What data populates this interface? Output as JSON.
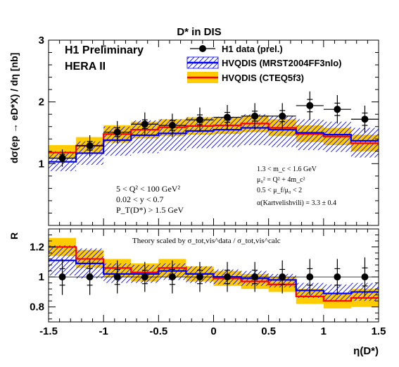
{
  "chart_data": [
    {
      "id": "main",
      "type": "line",
      "title": "D* in DIS",
      "ylabel": "dσ(ep → eD*X) / dη [nb]",
      "ylim": [
        0,
        3
      ],
      "yticks": [
        1,
        2,
        3
      ],
      "xlim": [
        -1.5,
        1.5
      ],
      "xticks": [
        -1.5,
        -1,
        -0.5,
        0,
        0.5,
        1,
        1.5
      ],
      "headline": [
        "H1 Preliminary",
        "HERA II"
      ],
      "legend_position": "top-right",
      "bin_edges": [
        -1.5,
        -1.25,
        -1.0,
        -0.75,
        -0.5,
        -0.25,
        0.0,
        0.25,
        0.5,
        0.75,
        1.0,
        1.25,
        1.5
      ],
      "series": [
        {
          "key": "data",
          "name": "H1 data (prel.)",
          "kind": "points",
          "color": "#000000",
          "x": [
            -1.375,
            -1.125,
            -0.875,
            -0.625,
            -0.375,
            -0.125,
            0.125,
            0.375,
            0.625,
            0.875,
            1.125,
            1.375
          ],
          "y": [
            1.09,
            1.29,
            1.51,
            1.64,
            1.62,
            1.71,
            1.75,
            1.77,
            1.77,
            1.94,
            1.88,
            1.72
          ],
          "err_stat": [
            0.06,
            0.07,
            0.07,
            0.07,
            0.08,
            0.08,
            0.08,
            0.08,
            0.09,
            0.1,
            0.1,
            0.1
          ],
          "err_tot": [
            0.14,
            0.17,
            0.18,
            0.19,
            0.19,
            0.2,
            0.2,
            0.21,
            0.21,
            0.23,
            0.23,
            0.22
          ]
        },
        {
          "key": "mrst",
          "name": "HVQDIS (MRST2004FF3nlo)",
          "kind": "histogram",
          "color": "#0000ff",
          "band_style": "hatched",
          "central": [
            1.03,
            1.17,
            1.38,
            1.46,
            1.49,
            1.53,
            1.55,
            1.58,
            1.55,
            1.5,
            1.47,
            1.37
          ],
          "low": [
            0.88,
            0.98,
            1.13,
            1.17,
            1.21,
            1.25,
            1.27,
            1.3,
            1.27,
            1.22,
            1.19,
            1.1
          ],
          "high": [
            1.2,
            1.36,
            1.6,
            1.7,
            1.72,
            1.75,
            1.76,
            1.8,
            1.77,
            1.72,
            1.68,
            1.58
          ]
        },
        {
          "key": "cteq",
          "name": "HVQDIS (CTEQ5f3)",
          "kind": "histogram",
          "color": "#ff0000",
          "band_color": "#ffcc00",
          "band_style": "solid",
          "central": [
            1.18,
            1.29,
            1.48,
            1.55,
            1.59,
            1.61,
            1.62,
            1.65,
            1.58,
            1.48,
            1.44,
            1.33
          ],
          "low": [
            1.07,
            1.16,
            1.34,
            1.41,
            1.45,
            1.47,
            1.48,
            1.51,
            1.45,
            1.35,
            1.3,
            1.2
          ],
          "high": [
            1.3,
            1.43,
            1.62,
            1.68,
            1.72,
            1.75,
            1.76,
            1.78,
            1.72,
            1.62,
            1.58,
            1.47
          ]
        }
      ],
      "annotations_left": [
        "5 < Q² < 100 GeV²",
        "0.02 < y < 0.7",
        "P_T(D*) > 1.5 GeV"
      ],
      "annotations_right": [
        "1.3 < m_c < 1.6 GeV",
        "μ₀² = Q² + 4m_c²",
        "0.5 < μ_f/μ₀ < 2",
        "α(Kartvelishvili) = 3.3 ± 0.4"
      ]
    },
    {
      "id": "ratio",
      "type": "line",
      "ylabel": "R",
      "xlabel": "η(D*)",
      "ylim": [
        0.7,
        1.32
      ],
      "yticks": [
        0.8,
        1,
        1.2
      ],
      "xlim": [
        -1.5,
        1.5
      ],
      "xticks": [
        -1.5,
        -1,
        -0.5,
        0,
        0.5,
        1,
        1.5
      ],
      "annotation": "Theory scaled by σ_tot,vis^data / σ_tot,vis^calc",
      "bin_edges": [
        -1.5,
        -1.25,
        -1.0,
        -0.75,
        -0.5,
        -0.25,
        0.0,
        0.25,
        0.5,
        0.75,
        1.0,
        1.25,
        1.5
      ],
      "series": [
        {
          "key": "data",
          "kind": "points",
          "color": "#000000",
          "x": [
            -1.375,
            -1.125,
            -0.875,
            -0.625,
            -0.375,
            -0.125,
            0.125,
            0.375,
            0.625,
            0.875,
            1.125,
            1.375
          ],
          "y": [
            1.0,
            1.0,
            1.0,
            1.0,
            1.0,
            1.0,
            1.0,
            1.0,
            1.0,
            1.0,
            1.0,
            1.0
          ],
          "err_stat": [
            0.055,
            0.055,
            0.05,
            0.045,
            0.05,
            0.045,
            0.045,
            0.045,
            0.05,
            0.055,
            0.055,
            0.06
          ],
          "err_tot": [
            0.12,
            0.12,
            0.11,
            0.1,
            0.11,
            0.1,
            0.1,
            0.1,
            0.11,
            0.12,
            0.12,
            0.13
          ]
        },
        {
          "key": "mrst",
          "kind": "histogram",
          "color": "#0000ff",
          "band_style": "hatched",
          "central": [
            1.11,
            1.09,
            1.02,
            1.02,
            1.04,
            1.02,
            1.0,
            0.99,
            0.98,
            0.91,
            0.89,
            0.9
          ],
          "low": [
            1.01,
            0.99,
            0.96,
            0.96,
            0.98,
            0.96,
            0.95,
            0.94,
            0.93,
            0.86,
            0.84,
            0.84
          ],
          "high": [
            1.21,
            1.19,
            1.09,
            1.08,
            1.09,
            1.07,
            1.05,
            1.04,
            1.02,
            0.96,
            0.95,
            0.96
          ]
        },
        {
          "key": "cteq",
          "kind": "histogram",
          "color": "#ff0000",
          "band_color": "#ffcc00",
          "band_style": "solid",
          "central": [
            1.2,
            1.12,
            1.06,
            1.03,
            1.06,
            1.02,
            0.99,
            0.97,
            0.95,
            0.87,
            0.84,
            0.86
          ],
          "low": [
            1.14,
            1.06,
            1.0,
            0.97,
            1.0,
            0.97,
            0.94,
            0.92,
            0.9,
            0.82,
            0.79,
            0.8
          ],
          "high": [
            1.26,
            1.18,
            1.12,
            1.09,
            1.12,
            1.07,
            1.04,
            1.02,
            1.0,
            0.92,
            0.89,
            0.92
          ]
        }
      ]
    }
  ]
}
